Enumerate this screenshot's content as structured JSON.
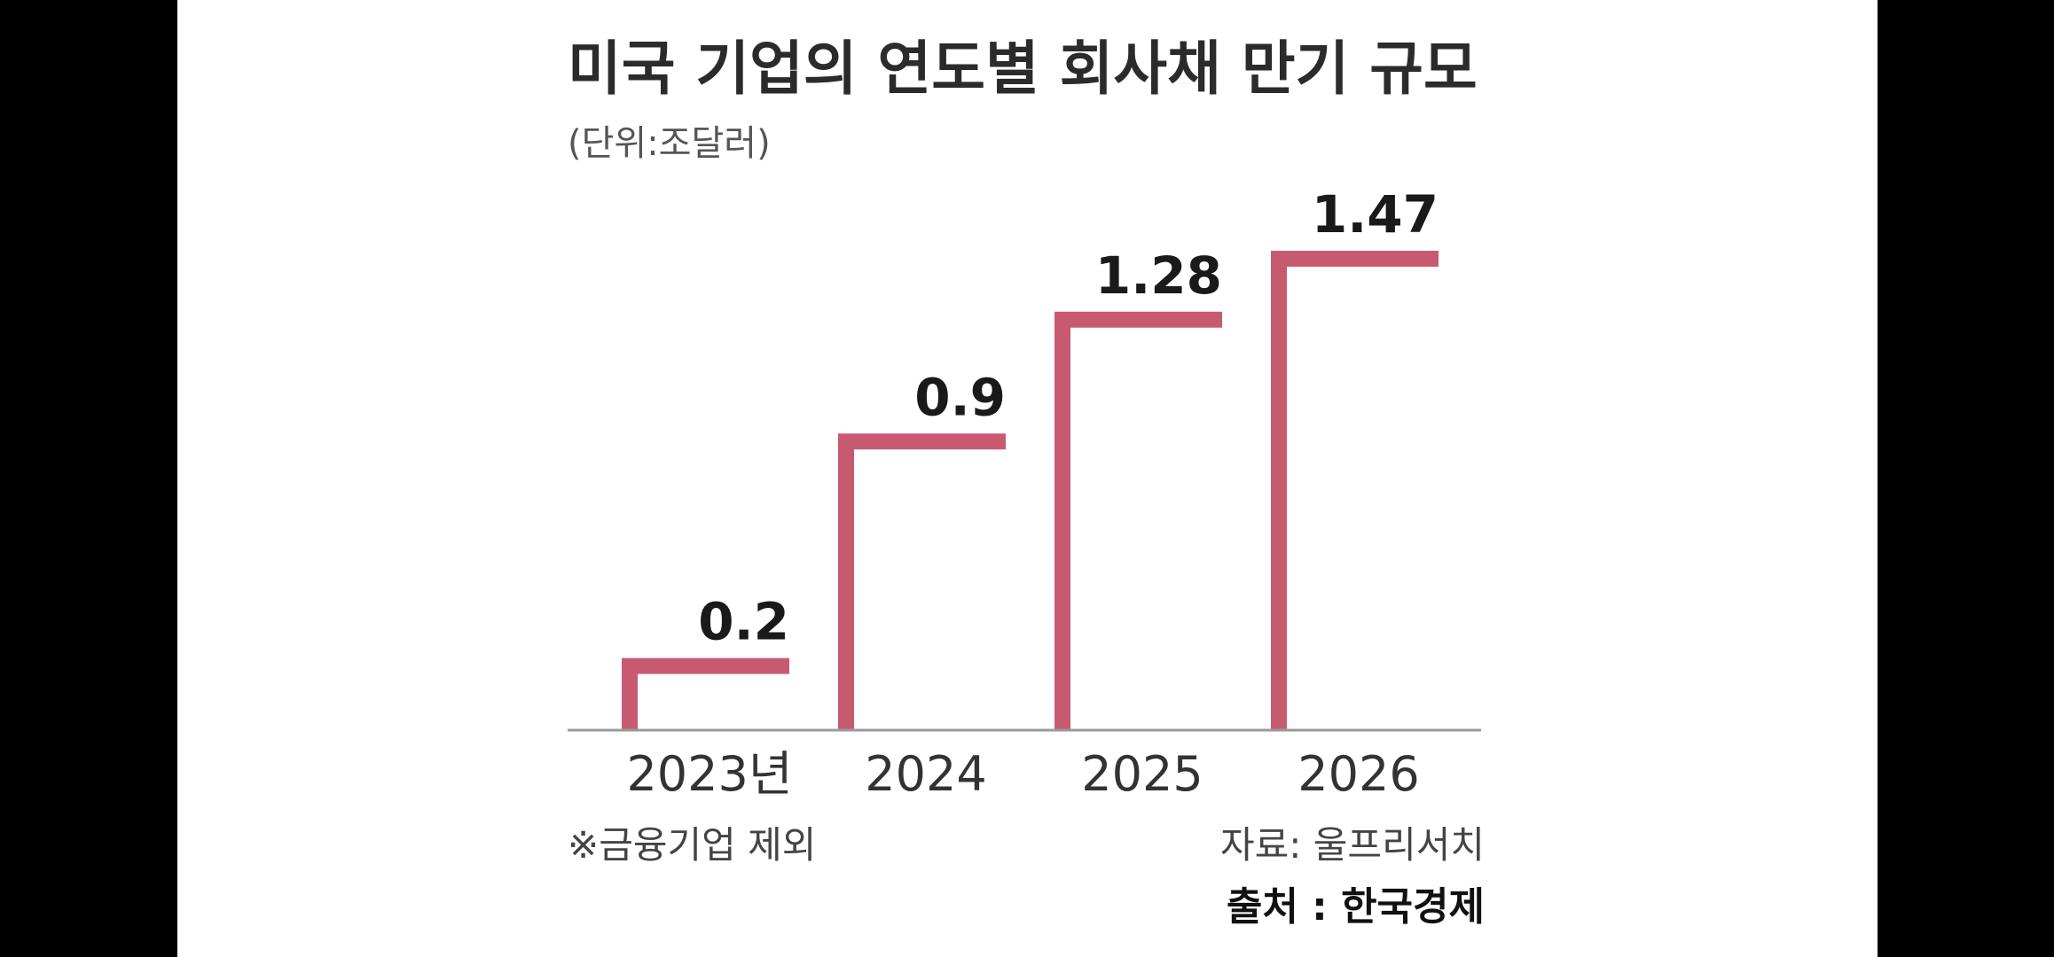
{
  "chart_data": {
    "type": "bar",
    "title": "미국 기업의 연도별 회사채 만기 규모",
    "unit_label": "(단위:조달러)",
    "categories": [
      "2023년",
      "2024",
      "2025",
      "2026"
    ],
    "values": [
      0.2,
      0.9,
      1.28,
      1.47
    ],
    "value_labels": [
      "0.2",
      "0.9",
      "1.28",
      "1.47"
    ],
    "bar_color": "#c85a70",
    "ylim": [
      0,
      1.47
    ],
    "grid": false,
    "note": "※금융기업 제외",
    "source": "자료: 울프리서치"
  },
  "credit": "출처 : 한국경제"
}
